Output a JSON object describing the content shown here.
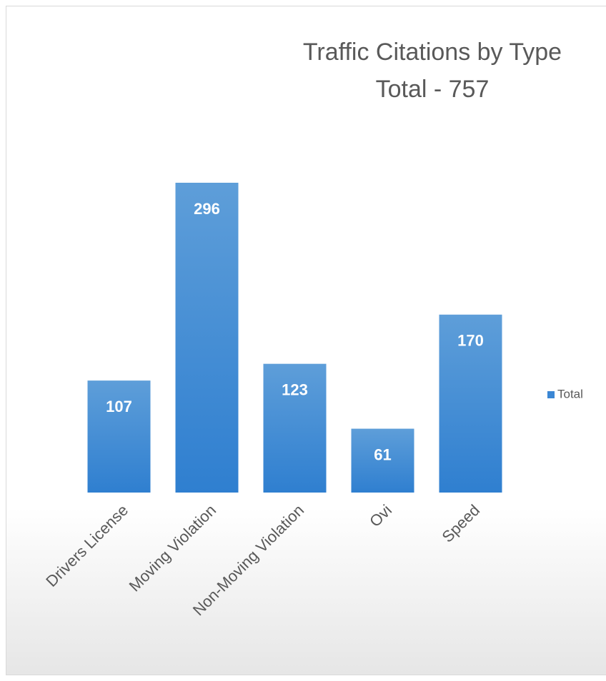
{
  "chart_data": {
    "type": "bar",
    "title": "Traffic Citations by Type",
    "subtitle": "Total - 757",
    "categories": [
      "Drivers License",
      "Moving Violation",
      "Non-Moving Violation",
      "Ovi",
      "Speed"
    ],
    "series": [
      {
        "name": "Total",
        "color": "#3b87d4",
        "values": [
          107,
          296,
          123,
          61,
          170
        ]
      }
    ],
    "legend": "right"
  }
}
